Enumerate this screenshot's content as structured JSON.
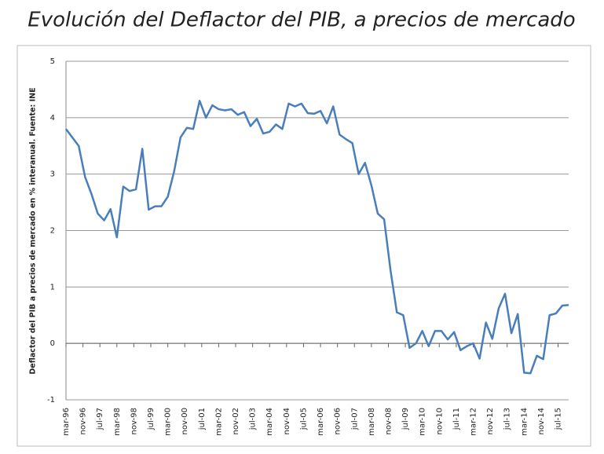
{
  "chart_data": {
    "type": "line",
    "title": "Evolución del Deflactor del PIB, a precios de mercado",
    "y_label": "Deflactor del PIB a precios de mercado en % interanual. Fuente: INE",
    "ylim": [
      -1,
      5
    ],
    "yticks": [
      -1,
      0,
      1,
      2,
      3,
      4,
      5
    ],
    "grid": true,
    "xlim": [
      1996.1667,
      2015.9167
    ],
    "xticks": [
      {
        "value": 1996.1667,
        "label": "mar-96"
      },
      {
        "value": 1996.8333,
        "label": "nov-96"
      },
      {
        "value": 1997.5,
        "label": "jul-97"
      },
      {
        "value": 1998.1667,
        "label": "mar-98"
      },
      {
        "value": 1998.8333,
        "label": "nov-98"
      },
      {
        "value": 1999.5,
        "label": "jul-99"
      },
      {
        "value": 2000.1667,
        "label": "mar-00"
      },
      {
        "value": 2000.8333,
        "label": "nov-00"
      },
      {
        "value": 2001.5,
        "label": "jul-01"
      },
      {
        "value": 2002.1667,
        "label": "mar-02"
      },
      {
        "value": 2002.8333,
        "label": "nov-02"
      },
      {
        "value": 2003.5,
        "label": "jul-03"
      },
      {
        "value": 2004.1667,
        "label": "mar-04"
      },
      {
        "value": 2004.8333,
        "label": "nov-04"
      },
      {
        "value": 2005.5,
        "label": "jul-05"
      },
      {
        "value": 2006.1667,
        "label": "mar-06"
      },
      {
        "value": 2006.8333,
        "label": "nov-06"
      },
      {
        "value": 2007.5,
        "label": "jul-07"
      },
      {
        "value": 2008.1667,
        "label": "mar-08"
      },
      {
        "value": 2008.8333,
        "label": "nov-08"
      },
      {
        "value": 2009.5,
        "label": "jul-09"
      },
      {
        "value": 2010.1667,
        "label": "mar-10"
      },
      {
        "value": 2010.8333,
        "label": "nov-10"
      },
      {
        "value": 2011.5,
        "label": "jul-11"
      },
      {
        "value": 2012.1667,
        "label": "mar-12"
      },
      {
        "value": 2012.8333,
        "label": "nov-12"
      },
      {
        "value": 2013.5,
        "label": "jul-13"
      },
      {
        "value": 2014.1667,
        "label": "mar-14"
      },
      {
        "value": 2014.8333,
        "label": "nov-14"
      },
      {
        "value": 2015.5,
        "label": "jul-15"
      }
    ],
    "x": [
      1996.1667,
      1996.4167,
      1996.6667,
      1996.9167,
      1997.1667,
      1997.4167,
      1997.6667,
      1997.9167,
      1998.1667,
      1998.4167,
      1998.6667,
      1998.9167,
      1999.1667,
      1999.4167,
      1999.6667,
      1999.9167,
      2000.1667,
      2000.4167,
      2000.6667,
      2000.9167,
      2001.1667,
      2001.4167,
      2001.6667,
      2001.9167,
      2002.1667,
      2002.4167,
      2002.6667,
      2002.9167,
      2003.1667,
      2003.4167,
      2003.6667,
      2003.9167,
      2004.1667,
      2004.4167,
      2004.6667,
      2004.9167,
      2005.1667,
      2005.4167,
      2005.6667,
      2005.9167,
      2006.1667,
      2006.4167,
      2006.6667,
      2006.9167,
      2007.1667,
      2007.4167,
      2007.6667,
      2007.9167,
      2008.1667,
      2008.4167,
      2008.6667,
      2008.9167,
      2009.1667,
      2009.4167,
      2009.6667,
      2009.9167,
      2010.1667,
      2010.4167,
      2010.6667,
      2010.9167,
      2011.1667,
      2011.4167,
      2011.6667,
      2011.9167,
      2012.1667,
      2012.4167,
      2012.6667,
      2012.9167,
      2013.1667,
      2013.4167,
      2013.6667,
      2013.9167,
      2014.1667,
      2014.4167,
      2014.6667,
      2014.9167,
      2015.1667,
      2015.4167,
      2015.6667,
      2015.9167
    ],
    "series": [
      {
        "name": "Deflactor del PIB",
        "color": "#4a7ebb",
        "values": [
          3.8,
          3.65,
          3.5,
          2.95,
          2.65,
          2.3,
          2.18,
          2.38,
          1.88,
          2.78,
          2.7,
          2.73,
          3.45,
          2.37,
          2.43,
          2.43,
          2.6,
          3.05,
          3.65,
          3.82,
          3.8,
          4.3,
          4.0,
          4.22,
          4.15,
          4.13,
          4.15,
          4.05,
          4.1,
          3.85,
          3.98,
          3.72,
          3.75,
          3.88,
          3.8,
          4.25,
          4.2,
          4.25,
          4.08,
          4.07,
          4.12,
          3.9,
          4.2,
          3.7,
          3.62,
          3.55,
          3.0,
          3.2,
          2.8,
          2.3,
          2.2,
          1.3,
          0.55,
          0.5,
          -0.08,
          0.0,
          0.22,
          -0.05,
          0.22,
          0.22,
          0.07,
          0.2,
          -0.12,
          -0.05,
          0.0,
          -0.27,
          0.37,
          0.08,
          0.62,
          0.88,
          0.18,
          0.52,
          -0.52,
          -0.53,
          -0.22,
          -0.28,
          0.5,
          0.53,
          0.67,
          0.68
        ]
      }
    ]
  }
}
